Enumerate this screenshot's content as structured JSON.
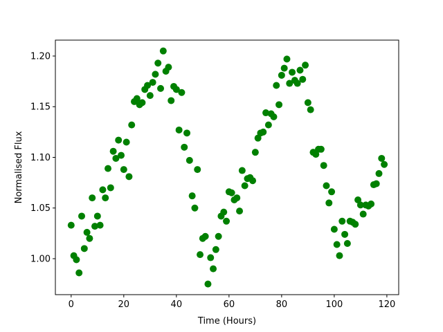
{
  "chart_data": {
    "type": "scatter",
    "title": "",
    "xlabel": "Time (Hours)",
    "ylabel": "Normalised Flux",
    "xlim": [
      -6,
      124.5
    ],
    "ylim": [
      0.9645,
      1.2157
    ],
    "xticks": [
      0,
      20,
      40,
      60,
      80,
      100,
      120
    ],
    "xtick_labels": [
      "0",
      "20",
      "40",
      "60",
      "80",
      "100",
      "120"
    ],
    "yticks": [
      1.0,
      1.05,
      1.1,
      1.15,
      1.2
    ],
    "ytick_labels": [
      "1.00",
      "1.05",
      "1.10",
      "1.15",
      "1.20"
    ],
    "grid": false,
    "marker_color": "#008000",
    "x": [
      0,
      1,
      2,
      3,
      4,
      5,
      6,
      7,
      8,
      9,
      10,
      11,
      12,
      13,
      14,
      15,
      16,
      17,
      18,
      19,
      20,
      21,
      22,
      23,
      24,
      25,
      26,
      27,
      28,
      29,
      30,
      31,
      32,
      33,
      34,
      35,
      36,
      37,
      38,
      39,
      40,
      41,
      42,
      43,
      44,
      45,
      46,
      47,
      48,
      49,
      50,
      51,
      52,
      53,
      54,
      55,
      56,
      57,
      58,
      59,
      60,
      61,
      62,
      63,
      64,
      65,
      66,
      67,
      68,
      69,
      70,
      71,
      72,
      73,
      74,
      75,
      76,
      77,
      78,
      79,
      80,
      81,
      82,
      83,
      84,
      85,
      86,
      87,
      88,
      89,
      90,
      91,
      92,
      93,
      94,
      95,
      96,
      97,
      98,
      99,
      100,
      101,
      102,
      103,
      104,
      105,
      106,
      107,
      108,
      109,
      110,
      111,
      112,
      113,
      114,
      115,
      116,
      117,
      118,
      119
    ],
    "y": [
      1.033,
      1.003,
      0.999,
      0.986,
      1.042,
      1.01,
      1.026,
      1.02,
      1.06,
      1.032,
      1.042,
      1.033,
      1.068,
      1.06,
      1.089,
      1.07,
      1.106,
      1.099,
      1.117,
      1.102,
      1.088,
      1.115,
      1.081,
      1.132,
      1.155,
      1.158,
      1.152,
      1.154,
      1.167,
      1.171,
      1.161,
      1.174,
      1.182,
      1.193,
      1.168,
      1.205,
      1.185,
      1.189,
      1.156,
      1.17,
      1.167,
      1.127,
      1.164,
      1.11,
      1.124,
      1.097,
      1.062,
      1.05,
      1.088,
      1.004,
      1.02,
      1.022,
      0.975,
      1.001,
      0.99,
      1.009,
      1.022,
      1.042,
      1.046,
      1.037,
      1.066,
      1.065,
      1.058,
      1.06,
      1.047,
      1.087,
      1.072,
      1.079,
      1.08,
      1.077,
      1.105,
      1.119,
      1.124,
      1.125,
      1.144,
      1.132,
      1.143,
      1.14,
      1.171,
      1.152,
      1.181,
      1.188,
      1.197,
      1.173,
      1.184,
      1.176,
      1.173,
      1.186,
      1.177,
      1.191,
      1.154,
      1.147,
      1.105,
      1.103,
      1.108,
      1.108,
      1.092,
      1.072,
      1.055,
      1.066,
      1.029,
      1.014,
      1.003,
      1.037,
      1.024,
      1.015,
      1.037,
      1.036,
      1.034,
      1.058,
      1.053,
      1.044,
      1.053,
      1.052,
      1.054,
      1.073,
      1.074,
      1.084,
      1.099,
      1.093
    ]
  }
}
